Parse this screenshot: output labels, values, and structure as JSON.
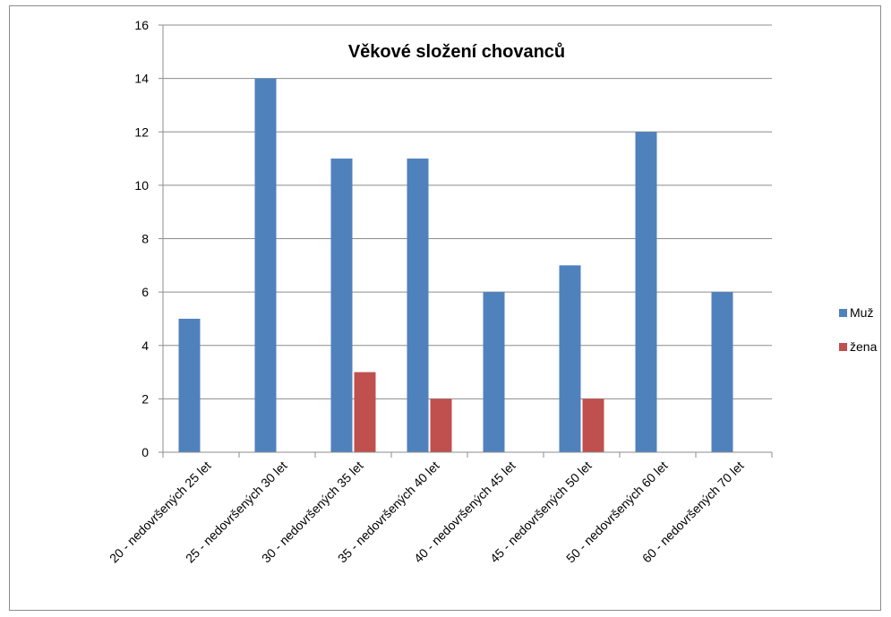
{
  "chart_data": {
    "type": "bar",
    "title": "Věkové složení chovanců",
    "xlabel": "",
    "ylabel": "",
    "ylim": [
      0,
      16
    ],
    "yticks": [
      0,
      2,
      4,
      6,
      8,
      10,
      12,
      14,
      16
    ],
    "grid": true,
    "legend_position": "right",
    "categories": [
      "20 - nedovršených 25 let",
      "25 - nedovršených 30 let",
      "30 - nedovršených 35 let",
      "35 - nedovršených 40 let",
      "40 - nedovršených 45 let",
      "45 - nedovršených 50 let",
      "50 - nedovršených 60 let",
      "60 - nedovršených 70 let"
    ],
    "series": [
      {
        "name": "Muž",
        "color": "#4f81bd",
        "values": [
          5,
          14,
          11,
          11,
          6,
          7,
          12,
          6
        ]
      },
      {
        "name": "žena",
        "color": "#c0504d",
        "values": [
          0,
          0,
          3,
          2,
          0,
          2,
          0,
          0
        ]
      }
    ]
  }
}
